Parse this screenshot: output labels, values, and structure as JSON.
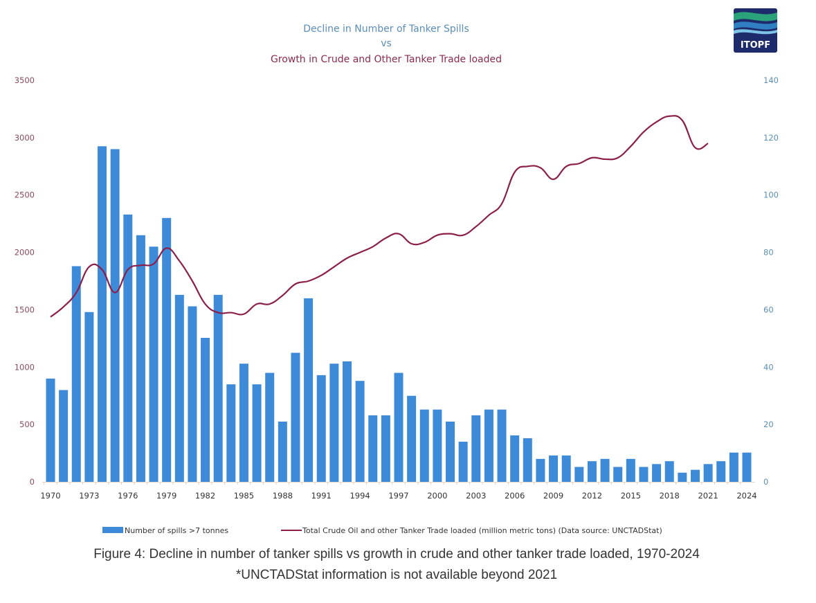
{
  "logo": {
    "text": "ITOPF",
    "colors": {
      "navy": "#1e2b6b",
      "teal": "#2aa37a",
      "blue": "#2f7fc2",
      "light_blue": "#7cc3e6"
    }
  },
  "caption": {
    "line1": "Figure 4: Decline in number of tanker spills vs growth in crude and other tanker trade loaded, 1970-2024",
    "line2": "*UNCTADStat information is not available beyond 2021"
  },
  "chart_data": {
    "type": "bar",
    "title_lines": [
      {
        "text": "Decline in Number of Tanker Spills",
        "color": "#5b8db8"
      },
      {
        "text": "vs",
        "color": "#5b8db8"
      },
      {
        "text": "Growth in Crude and Other Tanker Trade loaded",
        "color": "#8b2a4f"
      }
    ],
    "x": [
      1970,
      1971,
      1972,
      1973,
      1974,
      1975,
      1976,
      1977,
      1978,
      1979,
      1980,
      1981,
      1982,
      1983,
      1984,
      1985,
      1986,
      1987,
      1988,
      1989,
      1990,
      1991,
      1992,
      1993,
      1994,
      1995,
      1996,
      1997,
      1998,
      1999,
      2000,
      2001,
      2002,
      2003,
      2004,
      2005,
      2006,
      2007,
      2008,
      2009,
      2010,
      2011,
      2012,
      2013,
      2014,
      2015,
      2016,
      2017,
      2018,
      2019,
      2020,
      2021,
      2022,
      2023,
      2024
    ],
    "x_tick_labels": [
      "1970",
      "1973",
      "1976",
      "1979",
      "1982",
      "1985",
      "1988",
      "1991",
      "1994",
      "1997",
      "2000",
      "2003",
      "2006",
      "2009",
      "2012",
      "2015",
      "2018",
      "2021",
      "2024"
    ],
    "series": [
      {
        "name": "Number of spills >7 tonnes",
        "type": "bar",
        "axis": "left",
        "color": "#3d8ad9",
        "values": [
          900,
          800,
          1880,
          1480,
          2925,
          2900,
          2330,
          2150,
          2050,
          2300,
          1630,
          1530,
          1255,
          1630,
          850,
          1030,
          850,
          950,
          525,
          1125,
          1600,
          930,
          1030,
          1050,
          880,
          580,
          580,
          950,
          750,
          630,
          630,
          525,
          350,
          580,
          630,
          630,
          405,
          380,
          200,
          230,
          230,
          130,
          180,
          200,
          130,
          200,
          130,
          155,
          180,
          80,
          105,
          155,
          180,
          255,
          255
        ]
      },
      {
        "name": "Total Crude Oil and other Tanker Trade loaded (million metric tons) (Data source: UNCTADStat)",
        "type": "line",
        "axis": "right",
        "color": "#8b1f4a",
        "x_end": 2021,
        "values": [
          57.5,
          61,
          66,
          75,
          74,
          66,
          74,
          75.5,
          76,
          81.5,
          77,
          70,
          62,
          59,
          59,
          58.5,
          62,
          62,
          65,
          69,
          70,
          72,
          75,
          78,
          80,
          82,
          85,
          86.5,
          83,
          83.5,
          86,
          86.5,
          86,
          89,
          93,
          97,
          108,
          110,
          109.5,
          105.5,
          110,
          111,
          113,
          112.5,
          113,
          117,
          122,
          125.5,
          127.5,
          126,
          116.5,
          118
        ]
      }
    ],
    "y_left": {
      "ylim": [
        0,
        3500
      ],
      "ticks": [
        "0",
        "500",
        "1000",
        "1500",
        "2000",
        "2500",
        "3000",
        "3500"
      ],
      "color": "#8a4a60"
    },
    "y_right": {
      "ylim": [
        0,
        140
      ],
      "ticks": [
        "0",
        "20",
        "40",
        "60",
        "80",
        "100",
        "120",
        "140"
      ],
      "color": "#5a8fb4"
    },
    "xlabel": "",
    "ylabel": "",
    "grid": false,
    "legend_position": "bottom"
  }
}
